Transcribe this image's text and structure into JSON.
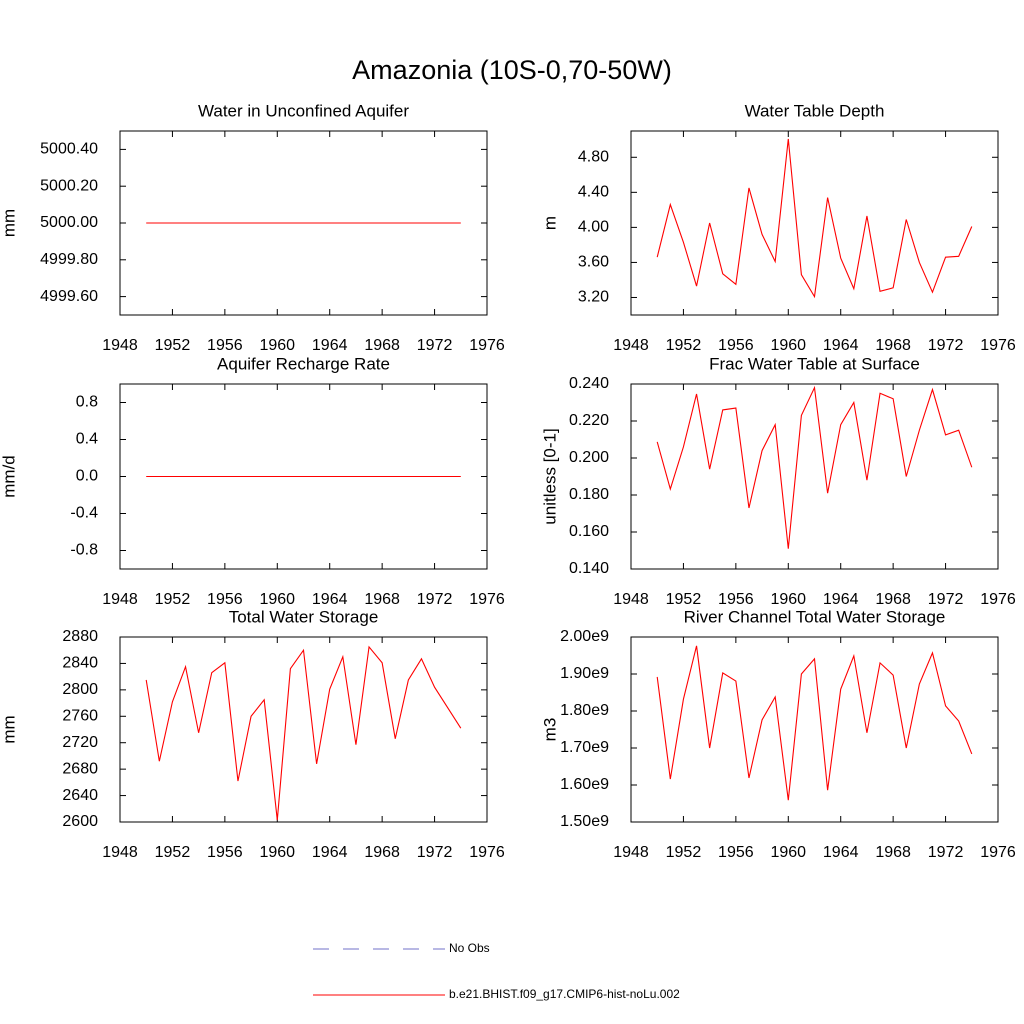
{
  "title": "Amazonia (10S-0,70-50W)",
  "legend": [
    {
      "name": "No Obs",
      "color": "#7070c8",
      "dash": true
    },
    {
      "name": "b.e21.BHIST.f09_g17.CMIP6-hist-noLu.002",
      "color": "#ff0000",
      "dash": false
    }
  ],
  "chart_data": [
    {
      "type": "line",
      "title": "Water in Unconfined Aquifer",
      "ylabel": "mm",
      "color": "#ff0000",
      "x": [
        1950,
        1951,
        1952,
        1953,
        1954,
        1955,
        1956,
        1957,
        1958,
        1959,
        1960,
        1961,
        1962,
        1963,
        1964,
        1965,
        1966,
        1967,
        1968,
        1969,
        1970,
        1971,
        1972,
        1973,
        1974
      ],
      "values": [
        5000,
        5000,
        5000,
        5000,
        5000,
        5000,
        5000,
        5000,
        5000,
        5000,
        5000,
        5000,
        5000,
        5000,
        5000,
        5000,
        5000,
        5000,
        5000,
        5000,
        5000,
        5000,
        5000,
        5000,
        5000
      ],
      "xlim": [
        1948,
        1976
      ],
      "xticks": [
        1948,
        1952,
        1956,
        1960,
        1964,
        1968,
        1972,
        1976
      ],
      "ylim": [
        4999.5,
        5000.5
      ],
      "yticks": [
        {
          "value": 5000.4,
          "label": "5000.40"
        },
        {
          "value": 5000.2,
          "label": "5000.20"
        },
        {
          "value": 5000,
          "label": "5000.00"
        },
        {
          "value": 4999.8,
          "label": "4999.80"
        },
        {
          "value": 4999.6,
          "label": "4999.60"
        }
      ]
    },
    {
      "type": "line",
      "title": "Water Table Depth",
      "ylabel": "m",
      "color": "#ff0000",
      "x": [
        1950,
        1951,
        1952,
        1953,
        1954,
        1955,
        1956,
        1957,
        1958,
        1959,
        1960,
        1961,
        1962,
        1963,
        1964,
        1965,
        1966,
        1967,
        1968,
        1969,
        1970,
        1971,
        1972,
        1973,
        1974
      ],
      "values": [
        3.66,
        4.26,
        3.83,
        3.33,
        4.05,
        3.47,
        3.35,
        4.45,
        3.92,
        3.61,
        5.01,
        3.46,
        3.21,
        4.34,
        3.65,
        3.3,
        4.13,
        3.27,
        3.31,
        4.09,
        3.6,
        3.26,
        3.66,
        3.67,
        4.01
      ],
      "xlim": [
        1948,
        1976
      ],
      "xticks": [
        1948,
        1952,
        1956,
        1960,
        1964,
        1968,
        1972,
        1976
      ],
      "ylim": [
        3.0,
        5.1
      ],
      "yticks": [
        {
          "value": 4.8,
          "label": "4.80"
        },
        {
          "value": 4.4,
          "label": "4.40"
        },
        {
          "value": 4,
          "label": "4.00"
        },
        {
          "value": 3.6,
          "label": "3.60"
        },
        {
          "value": 3.2,
          "label": "3.20"
        }
      ]
    },
    {
      "type": "line",
      "title": "Aquifer Recharge Rate",
      "ylabel": "mm/d",
      "color": "#ff0000",
      "x": [
        1950,
        1951,
        1952,
        1953,
        1954,
        1955,
        1956,
        1957,
        1958,
        1959,
        1960,
        1961,
        1962,
        1963,
        1964,
        1965,
        1966,
        1967,
        1968,
        1969,
        1970,
        1971,
        1972,
        1973,
        1974
      ],
      "values": [
        0,
        0,
        0,
        0,
        0,
        0,
        0,
        0,
        0,
        0,
        0,
        0,
        0,
        0,
        0,
        0,
        0,
        0,
        0,
        0,
        0,
        0,
        0,
        0,
        0
      ],
      "xlim": [
        1948,
        1976
      ],
      "xticks": [
        1948,
        1952,
        1956,
        1960,
        1964,
        1968,
        1972,
        1976
      ],
      "ylim": [
        -1,
        1
      ],
      "yticks": [
        0.8,
        0.4,
        {
          "value": 0,
          "label": "0.0"
        },
        -0.4,
        -0.8
      ]
    },
    {
      "type": "line",
      "title": "Frac Water Table at Surface",
      "ylabel": "unitless [0-1]",
      "color": "#ff0000",
      "x": [
        1950,
        1951,
        1952,
        1953,
        1954,
        1955,
        1956,
        1957,
        1958,
        1959,
        1960,
        1961,
        1962,
        1963,
        1964,
        1965,
        1966,
        1967,
        1968,
        1969,
        1970,
        1971,
        1972,
        1973,
        1974
      ],
      "values": [
        0.2087,
        0.1832,
        0.206,
        0.2346,
        0.194,
        0.226,
        0.227,
        0.173,
        0.204,
        0.218,
        0.151,
        0.223,
        0.238,
        0.181,
        0.218,
        0.23,
        0.188,
        0.235,
        0.232,
        0.19,
        0.215,
        0.237,
        0.2125,
        0.215,
        0.195
      ],
      "xlim": [
        1948,
        1976
      ],
      "xticks": [
        1948,
        1952,
        1956,
        1960,
        1964,
        1968,
        1972,
        1976
      ],
      "ylim": [
        0.14,
        0.24
      ],
      "yticks": [
        {
          "value": 0.24,
          "label": "0.240"
        },
        {
          "value": 0.22,
          "label": "0.220"
        },
        {
          "value": 0.2,
          "label": "0.200"
        },
        {
          "value": 0.18,
          "label": "0.180"
        },
        {
          "value": 0.16,
          "label": "0.160"
        },
        {
          "value": 0.14,
          "label": "0.140"
        }
      ]
    },
    {
      "type": "line",
      "title": "Total Water Storage",
      "ylabel": "mm",
      "color": "#ff0000",
      "x": [
        1950,
        1951,
        1952,
        1953,
        1954,
        1955,
        1956,
        1957,
        1958,
        1959,
        1960,
        1961,
        1962,
        1963,
        1964,
        1965,
        1966,
        1967,
        1968,
        1969,
        1970,
        1971,
        1972,
        1973,
        1974
      ],
      "values": [
        2815,
        2692,
        2782,
        2835,
        2735,
        2826,
        2841,
        2662,
        2760,
        2785,
        2603,
        2832,
        2860,
        2688,
        2801,
        2850,
        2717,
        2865,
        2841,
        2726,
        2815,
        2847,
        2804,
        2773,
        2742
      ],
      "xlim": [
        1948,
        1976
      ],
      "xticks": [
        1948,
        1952,
        1956,
        1960,
        1964,
        1968,
        1972,
        1976
      ],
      "ylim": [
        2600,
        2880
      ],
      "yticks": [
        2880,
        2840,
        2800,
        2760,
        2720,
        2680,
        2640,
        2600
      ]
    },
    {
      "type": "line",
      "title": "River Channel Total Water Storage",
      "ylabel": "m3",
      "color": "#ff0000",
      "x": [
        1950,
        1951,
        1952,
        1953,
        1954,
        1955,
        1956,
        1957,
        1958,
        1959,
        1960,
        1961,
        1962,
        1963,
        1964,
        1965,
        1966,
        1967,
        1968,
        1969,
        1970,
        1971,
        1972,
        1973,
        1974
      ],
      "values": [
        1892000000,
        1616000000,
        1832000000,
        1976000000,
        1700000000,
        1903000000,
        1881000000,
        1619000000,
        1776000000,
        1838000000,
        1559000000,
        1900000000,
        1941000000,
        1586000000,
        1859000000,
        1949000000,
        1741000000,
        1930000000,
        1897000000,
        1700000000,
        1873000000,
        1957000000,
        1814000000,
        1773000000,
        1684000000
      ],
      "xlim": [
        1948,
        1976
      ],
      "xticks": [
        1948,
        1952,
        1956,
        1960,
        1964,
        1968,
        1972,
        1976
      ],
      "ylim": [
        1500000000,
        2000000000
      ],
      "yticks": [
        {
          "value": 2000000000,
          "label": "2.00e9"
        },
        {
          "value": 1900000000,
          "label": "1.90e9"
        },
        {
          "value": 1800000000,
          "label": "1.80e9"
        },
        {
          "value": 1700000000,
          "label": "1.70e9"
        },
        {
          "value": 1600000000,
          "label": "1.60e9"
        },
        {
          "value": 1500000000,
          "label": "1.50e9"
        }
      ]
    }
  ]
}
